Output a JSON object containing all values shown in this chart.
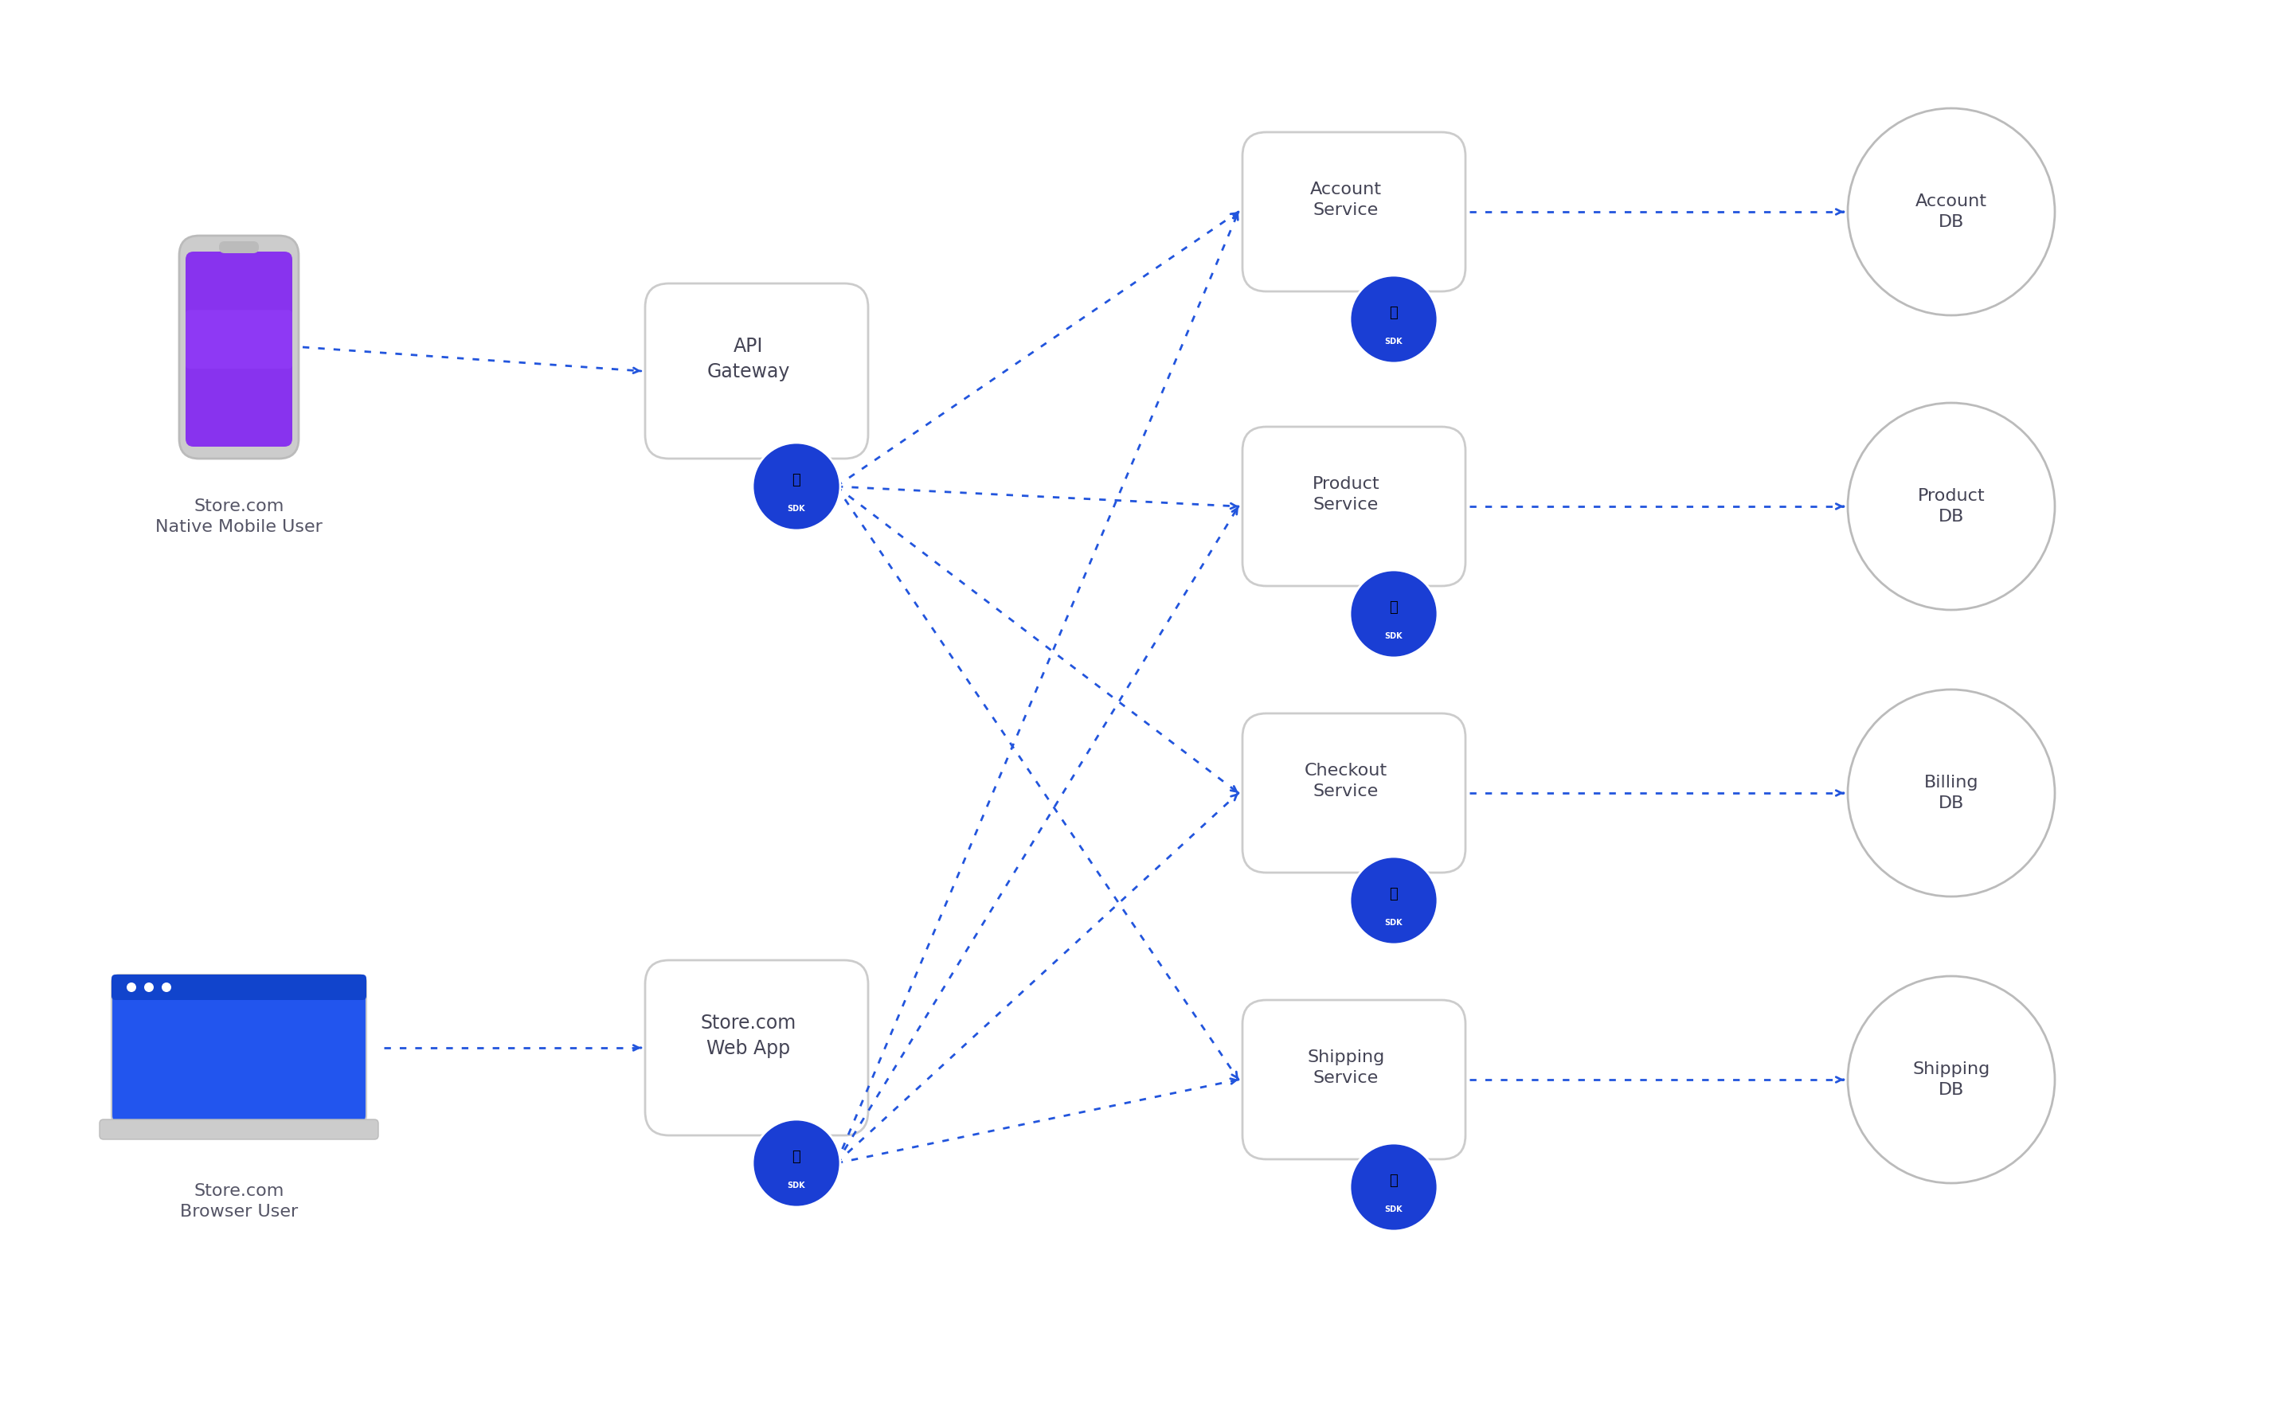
{
  "bg_color": "#ffffff",
  "arrow_color": "#2255DD",
  "box_border_color": "#CCCCCC",
  "circle_border_color": "#CCCCCC",
  "sdk_bg_color": "#1A3ED4",
  "text_color": "#444455",
  "label_color": "#555566",
  "mobile_label": "Store.com\nNative Mobile User",
  "browser_label": "Store.com\nBrowser User",
  "gateway_label": "API\nGateway",
  "webapp_label": "Store.com\nWeb App",
  "services": [
    "Account\nService",
    "Product\nService",
    "Checkout\nService",
    "Shipping\nService"
  ],
  "databases": [
    "Account\nDB",
    "Product\nDB",
    "Billing\nDB",
    "Shipping\nDB"
  ],
  "figsize": [
    28.69,
    17.86
  ]
}
